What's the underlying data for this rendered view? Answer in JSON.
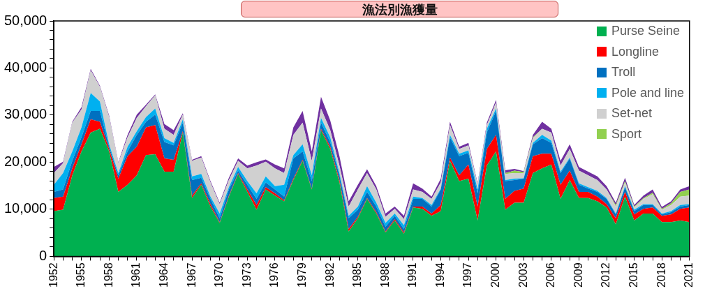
{
  "chart_data": {
    "type": "area",
    "stacked": true,
    "title": "漁法別漁獲量",
    "legend": "top right",
    "x": [
      1952,
      1953,
      1954,
      1955,
      1956,
      1957,
      1958,
      1959,
      1960,
      1961,
      1962,
      1963,
      1964,
      1965,
      1966,
      1967,
      1968,
      1969,
      1970,
      1971,
      1972,
      1973,
      1974,
      1975,
      1976,
      1977,
      1978,
      1979,
      1980,
      1981,
      1982,
      1983,
      1984,
      1985,
      1986,
      1987,
      1988,
      1989,
      1990,
      1991,
      1992,
      1993,
      1994,
      1995,
      1996,
      1997,
      1998,
      1999,
      2000,
      2001,
      2002,
      2003,
      2004,
      2005,
      2006,
      2007,
      2008,
      2009,
      2010,
      2011,
      2012,
      2013,
      2014,
      2015,
      2016,
      2017,
      2018,
      2019,
      2020,
      2021
    ],
    "xlim": [
      1952,
      2021
    ],
    "xticks": [
      1952,
      {
        "value": 1953,
        "label": null
      },
      {
        "value": 1954,
        "label": null
      },
      1955,
      {
        "value": 1956,
        "label": null
      },
      {
        "value": 1957,
        "label": null
      },
      1958,
      {
        "value": 1959,
        "label": null
      },
      {
        "value": 1960,
        "label": null
      },
      1961,
      {
        "value": 1962,
        "label": null
      },
      {
        "value": 1963,
        "label": null
      },
      1964,
      {
        "value": 1965,
        "label": null
      },
      {
        "value": 1966,
        "label": null
      },
      1967,
      {
        "value": 1968,
        "label": null
      },
      {
        "value": 1969,
        "label": null
      },
      1970,
      {
        "value": 1971,
        "label": null
      },
      {
        "value": 1972,
        "label": null
      },
      1973,
      {
        "value": 1974,
        "label": null
      },
      {
        "value": 1975,
        "label": null
      },
      1976,
      {
        "value": 1977,
        "label": null
      },
      {
        "value": 1978,
        "label": null
      },
      1979,
      {
        "value": 1980,
        "label": null
      },
      {
        "value": 1981,
        "label": null
      },
      1982,
      {
        "value": 1983,
        "label": null
      },
      {
        "value": 1984,
        "label": null
      },
      1985,
      {
        "value": 1986,
        "label": null
      },
      {
        "value": 1987,
        "label": null
      },
      1988,
      {
        "value": 1989,
        "label": null
      },
      {
        "value": 1990,
        "label": null
      },
      1991,
      {
        "value": 1992,
        "label": null
      },
      {
        "value": 1993,
        "label": null
      },
      1994,
      {
        "value": 1995,
        "label": null
      },
      {
        "value": 1996,
        "label": null
      },
      1997,
      {
        "value": 1998,
        "label": null
      },
      {
        "value": 1999,
        "label": null
      },
      2000,
      {
        "value": 2001,
        "label": null
      },
      {
        "value": 2002,
        "label": null
      },
      2003,
      {
        "value": 2004,
        "label": null
      },
      {
        "value": 2005,
        "label": null
      },
      2006,
      {
        "value": 2007,
        "label": null
      },
      {
        "value": 2008,
        "label": null
      },
      2009,
      {
        "value": 2010,
        "label": null
      },
      {
        "value": 2011,
        "label": null
      },
      2012,
      {
        "value": 2013,
        "label": null
      },
      {
        "value": 2014,
        "label": null
      },
      2015,
      {
        "value": 2016,
        "label": null
      },
      {
        "value": 2017,
        "label": null
      },
      2018,
      {
        "value": 2019,
        "label": null
      },
      {
        "value": 2020,
        "label": null
      },
      2021
    ],
    "ylim": [
      0,
      50000
    ],
    "yticks": [
      {
        "value": 0,
        "label": "0"
      },
      {
        "value": 2000,
        "label": null
      },
      {
        "value": 4000,
        "label": null
      },
      {
        "value": 6000,
        "label": null
      },
      {
        "value": 8000,
        "label": null
      },
      {
        "value": 10000,
        "label": "10,000"
      },
      {
        "value": 12000,
        "label": null
      },
      {
        "value": 14000,
        "label": null
      },
      {
        "value": 16000,
        "label": null
      },
      {
        "value": 18000,
        "label": null
      },
      {
        "value": 20000,
        "label": "20,000"
      },
      {
        "value": 22000,
        "label": null
      },
      {
        "value": 24000,
        "label": null
      },
      {
        "value": 26000,
        "label": null
      },
      {
        "value": 28000,
        "label": null
      },
      {
        "value": 30000,
        "label": "30,000"
      },
      {
        "value": 32000,
        "label": null
      },
      {
        "value": 34000,
        "label": null
      },
      {
        "value": 36000,
        "label": null
      },
      {
        "value": 38000,
        "label": null
      },
      {
        "value": 40000,
        "label": "40,000"
      },
      {
        "value": 42000,
        "label": null
      },
      {
        "value": 44000,
        "label": null
      },
      {
        "value": 46000,
        "label": null
      },
      {
        "value": 48000,
        "label": null
      },
      {
        "value": 50000,
        "label": "50,000"
      }
    ],
    "series": [
      {
        "name": "Purse Seine",
        "color": "#00b050",
        "values": [
          9600,
          9900,
          17200,
          22300,
          26300,
          27100,
          22300,
          13700,
          15200,
          17200,
          21500,
          21700,
          18000,
          18000,
          26300,
          12400,
          15200,
          10600,
          7100,
          12700,
          17500,
          13700,
          9900,
          14200,
          12900,
          11700,
          16200,
          20300,
          14200,
          26800,
          22800,
          15700,
          5300,
          8100,
          12200,
          9100,
          5100,
          7600,
          4800,
          10400,
          10100,
          8600,
          9600,
          20300,
          16000,
          16500,
          7600,
          19300,
          22300,
          9900,
          11400,
          11400,
          17700,
          18700,
          19500,
          12200,
          16200,
          12400,
          12400,
          11700,
          10400,
          6800,
          12700,
          7600,
          9100,
          9100,
          7300,
          7300,
          7600,
          7300
        ]
      },
      {
        "name": "Longline",
        "color": "#ff0000",
        "values": [
          2800,
          2800,
          1500,
          1500,
          2800,
          1500,
          500,
          2800,
          6100,
          6100,
          5900,
          6200,
          2800,
          2500,
          300,
          500,
          300,
          500,
          200,
          200,
          200,
          500,
          1000,
          500,
          500,
          200,
          300,
          200,
          200,
          300,
          500,
          500,
          500,
          300,
          200,
          300,
          200,
          300,
          300,
          200,
          500,
          500,
          1300,
          700,
          1200,
          3000,
          3000,
          3500,
          3500,
          2300,
          2500,
          3000,
          3600,
          3100,
          2300,
          3000,
          2000,
          1300,
          1300,
          1000,
          700,
          1300,
          1000,
          1300,
          1000,
          1300,
          1300,
          1600,
          2500,
          3100
        ]
      },
      {
        "name": "Troll",
        "color": "#0070c0",
        "values": [
          1300,
          1500,
          1600,
          1500,
          1800,
          2300,
          500,
          700,
          1000,
          2500,
          1200,
          2200,
          3500,
          3100,
          1800,
          3300,
          1200,
          1100,
          800,
          1300,
          500,
          1000,
          1300,
          1000,
          800,
          800,
          4300,
          1800,
          1600,
          1300,
          1000,
          1000,
          2300,
          1500,
          1300,
          1200,
          1000,
          700,
          700,
          1600,
          1600,
          1500,
          3300,
          4300,
          4100,
          2500,
          2800,
          3500,
          5100,
          3800,
          2300,
          2100,
          2500,
          3300,
          2300,
          2500,
          2600,
          1500,
          700,
          1000,
          1100,
          800,
          1000,
          700,
          800,
          500,
          300,
          500,
          500,
          500
        ]
      },
      {
        "name": "Pole and line",
        "color": "#00b0f0",
        "values": [
          1500,
          3500,
          2000,
          2100,
          3800,
          2000,
          500,
          500,
          1000,
          800,
          1000,
          1300,
          800,
          500,
          700,
          800,
          800,
          500,
          1000,
          500,
          800,
          800,
          1200,
          1300,
          700,
          2500,
          700,
          1500,
          1200,
          1000,
          1000,
          500,
          500,
          700,
          1200,
          800,
          800,
          500,
          800,
          500,
          200,
          300,
          200,
          500,
          500,
          500,
          800,
          800,
          500,
          200,
          300,
          100,
          300,
          700,
          500,
          300,
          200,
          300,
          300,
          200,
          200,
          200,
          200,
          300,
          200,
          200,
          200,
          200,
          300,
          200
        ]
      },
      {
        "name": "Set-net",
        "color": "#d0d0d0",
        "values": [
          2500,
          2100,
          6100,
          3800,
          4800,
          3100,
          5800,
          2100,
          2000,
          2800,
          2300,
          2800,
          2000,
          1700,
          1000,
          3300,
          3500,
          3000,
          2000,
          1500,
          1300,
          2700,
          5900,
          3100,
          3800,
          2500,
          4300,
          4600,
          3100,
          2000,
          1500,
          1600,
          2000,
          3600,
          2800,
          2800,
          1300,
          1000,
          1300,
          1500,
          1300,
          1300,
          1300,
          2100,
          1000,
          1100,
          1000,
          800,
          1300,
          1300,
          1200,
          1100,
          1000,
          1300,
          1700,
          1300,
          1800,
          2700,
          2500,
          2300,
          1800,
          1500,
          800,
          500,
          1100,
          2100,
          800,
          1300,
          1800,
          1800
        ]
      },
      {
        "name": "Sport",
        "color": "#92d050",
        "values": [
          0,
          0,
          0,
          0,
          0,
          0,
          0,
          0,
          0,
          0,
          0,
          0,
          0,
          0,
          0,
          0,
          0,
          0,
          0,
          0,
          0,
          0,
          0,
          0,
          0,
          0,
          0,
          0,
          0,
          0,
          0,
          0,
          0,
          0,
          0,
          0,
          0,
          0,
          0,
          0,
          0,
          0,
          0,
          0,
          0,
          0,
          0,
          0,
          0,
          200,
          500,
          200,
          200,
          0,
          0,
          0,
          0,
          0,
          0,
          0,
          0,
          300,
          300,
          200,
          200,
          300,
          200,
          400,
          1000,
          1300
        ]
      },
      {
        "color": "#7030a0",
        "values": [
          1300,
          300,
          200,
          500,
          300,
          200,
          300,
          200,
          500,
          700,
          300,
          200,
          1000,
          1000,
          300,
          200,
          300,
          300,
          300,
          500,
          500,
          600,
          700,
          500,
          800,
          1000,
          1600,
          2500,
          2000,
          2500,
          2100,
          2000,
          1100,
          1000,
          800,
          700,
          700,
          500,
          700,
          1300,
          700,
          500,
          800,
          700,
          500,
          500,
          300,
          500,
          500,
          600,
          400,
          200,
          500,
          1500,
          800,
          1000,
          1000,
          800,
          800,
          800,
          700,
          500,
          700,
          300,
          500,
          700,
          400,
          400,
          500,
          700
        ]
      }
    ]
  }
}
